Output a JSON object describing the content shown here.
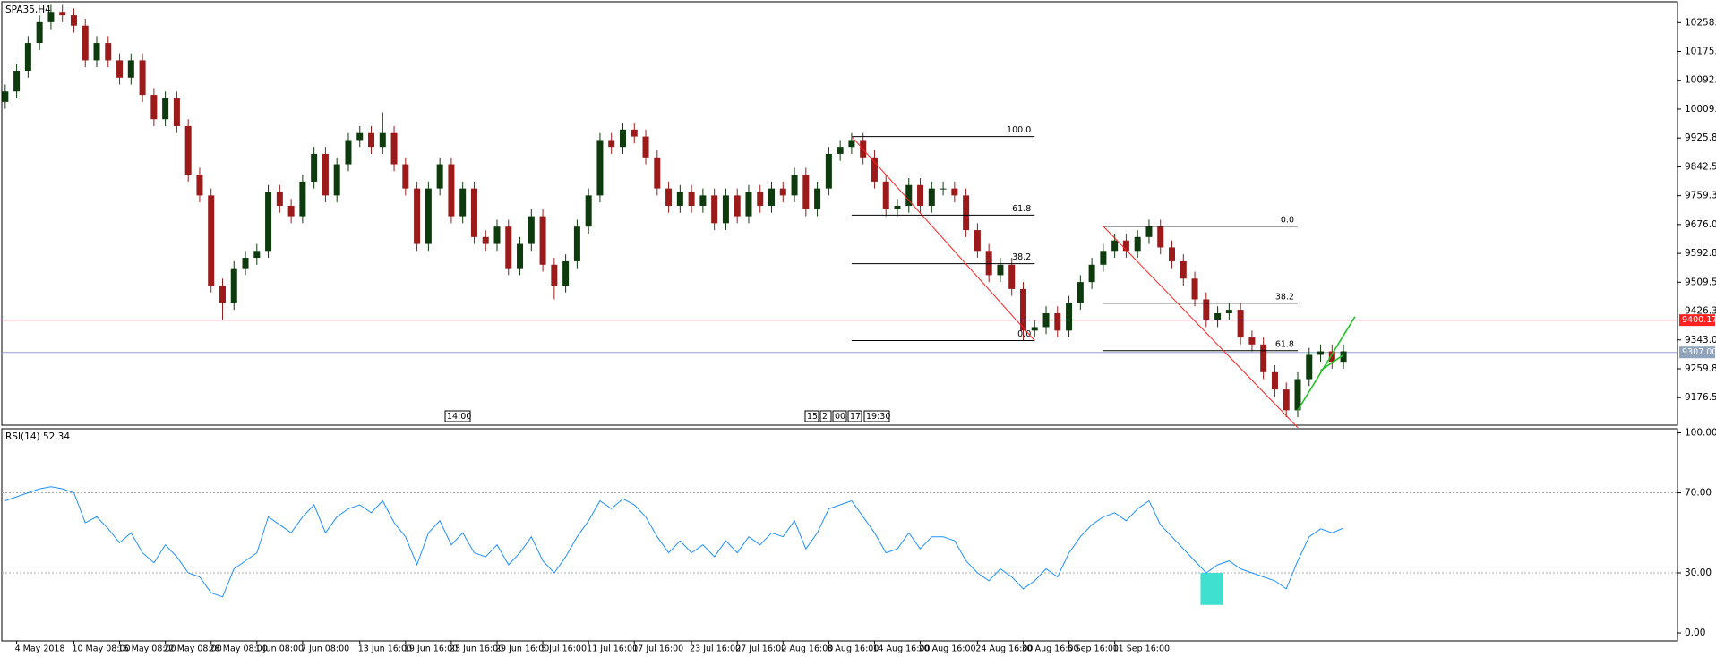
{
  "chart_data": [
    {
      "type": "candlestick",
      "title": "SPA35,H4",
      "up_color": "#0d3b0d",
      "down_color": "#9c1a1a",
      "candles": {
        "open": [
          10030,
          10060,
          10120,
          10200,
          10260,
          10290,
          10280,
          10250,
          10150,
          10200,
          10150,
          10100,
          10150,
          10050,
          9980,
          10040,
          9960,
          9820,
          9760,
          9500,
          9450,
          9550,
          9580,
          9600,
          9770,
          9730,
          9700,
          9800,
          9880,
          9760,
          9850,
          9920,
          9940,
          9900,
          9940,
          9850,
          9780,
          9620,
          9780,
          9850,
          9700,
          9780,
          9640,
          9620,
          9670,
          9550,
          9620,
          9700,
          9560,
          9500,
          9570,
          9670,
          9760,
          9920,
          9900,
          9950,
          9930,
          9870,
          9780,
          9730,
          9770,
          9730,
          9760,
          9680,
          9760,
          9700,
          9770,
          9730,
          9780,
          9760,
          9820,
          9720,
          9780,
          9880,
          9900,
          9920,
          9870,
          9800,
          9720,
          9730,
          9790,
          9730,
          9780,
          9780,
          9760,
          9660,
          9600,
          9530,
          9560,
          9490,
          9370,
          9380,
          9420,
          9370,
          9450,
          9510,
          9560,
          9600,
          9630,
          9600,
          9640,
          9670,
          9610,
          9570,
          9520,
          9460,
          9400,
          9420,
          9430,
          9350,
          9330,
          9250,
          9200,
          9140,
          9230,
          9300,
          9310,
          9280
        ],
        "high": [
          10080,
          10140,
          10220,
          10280,
          10310,
          10310,
          10300,
          10270,
          10220,
          10220,
          10170,
          10170,
          10170,
          10070,
          10060,
          10060,
          9980,
          9840,
          9780,
          9520,
          9570,
          9600,
          9620,
          9790,
          9790,
          9750,
          9820,
          9900,
          9900,
          9870,
          9940,
          9960,
          9960,
          10000,
          9960,
          9870,
          9800,
          9800,
          9870,
          9870,
          9800,
          9800,
          9660,
          9690,
          9690,
          9640,
          9720,
          9720,
          9580,
          9590,
          9690,
          9780,
          9940,
          9940,
          9970,
          9970,
          9950,
          9890,
          9800,
          9790,
          9790,
          9780,
          9780,
          9780,
          9780,
          9790,
          9790,
          9800,
          9800,
          9840,
          9840,
          9800,
          9900,
          9920,
          9940,
          9940,
          9890,
          9820,
          9750,
          9810,
          9810,
          9800,
          9800,
          9800,
          9780,
          9680,
          9620,
          9580,
          9580,
          9510,
          9400,
          9440,
          9440,
          9470,
          9530,
          9580,
          9620,
          9650,
          9650,
          9660,
          9690,
          9690,
          9630,
          9590,
          9540,
          9480,
          9440,
          9450,
          9450,
          9370,
          9350,
          9270,
          9220,
          9250,
          9320,
          9330,
          9330,
          9330
        ],
        "low": [
          10010,
          10040,
          10100,
          10180,
          10240,
          10260,
          10230,
          10130,
          10130,
          10130,
          10080,
          10080,
          10030,
          9960,
          9960,
          9940,
          9800,
          9740,
          9480,
          9400,
          9430,
          9530,
          9560,
          9580,
          9710,
          9680,
          9680,
          9780,
          9740,
          9740,
          9830,
          9900,
          9880,
          9880,
          9830,
          9760,
          9600,
          9600,
          9760,
          9680,
          9680,
          9620,
          9600,
          9600,
          9530,
          9530,
          9600,
          9540,
          9460,
          9480,
          9550,
          9650,
          9740,
          9880,
          9880,
          9910,
          9850,
          9760,
          9710,
          9710,
          9710,
          9710,
          9660,
          9660,
          9680,
          9680,
          9710,
          9710,
          9740,
          9740,
          9700,
          9700,
          9760,
          9860,
          9880,
          9850,
          9780,
          9700,
          9700,
          9710,
          9710,
          9710,
          9760,
          9740,
          9640,
          9580,
          9510,
          9510,
          9470,
          9340,
          9350,
          9360,
          9350,
          9350,
          9430,
          9490,
          9540,
          9580,
          9580,
          9580,
          9620,
          9590,
          9550,
          9500,
          9440,
          9380,
          9380,
          9400,
          9330,
          9310,
          9230,
          9180,
          9120,
          9120,
          9210,
          9280,
          9260,
          9260
        ],
        "close": [
          10060,
          10120,
          10200,
          10260,
          10290,
          10280,
          10250,
          10150,
          10200,
          10150,
          10100,
          10150,
          10050,
          9980,
          10040,
          9960,
          9820,
          9760,
          9500,
          9450,
          9550,
          9580,
          9600,
          9770,
          9730,
          9700,
          9800,
          9880,
          9760,
          9850,
          9920,
          9940,
          9900,
          9940,
          9850,
          9780,
          9620,
          9780,
          9850,
          9700,
          9780,
          9640,
          9620,
          9670,
          9550,
          9620,
          9700,
          9560,
          9500,
          9570,
          9670,
          9760,
          9920,
          9900,
          9950,
          9930,
          9870,
          9780,
          9730,
          9770,
          9730,
          9760,
          9680,
          9760,
          9700,
          9770,
          9730,
          9780,
          9760,
          9820,
          9720,
          9780,
          9880,
          9900,
          9920,
          9870,
          9800,
          9720,
          9730,
          9790,
          9730,
          9780,
          9780,
          9760,
          9660,
          9600,
          9530,
          9560,
          9490,
          9370,
          9380,
          9420,
          9370,
          9450,
          9510,
          9560,
          9600,
          9630,
          9600,
          9640,
          9670,
          9610,
          9570,
          9520,
          9460,
          9400,
          9420,
          9430,
          9350,
          9330,
          9250,
          9200,
          9140,
          9230,
          9300,
          9310,
          9280,
          9310
        ]
      },
      "xlim": [
        -0.3,
        146.2
      ],
      "xticks": [
        {
          "value": 1,
          "label": "4 May 2018"
        },
        {
          "value": 6,
          "label": "10 May 08:00"
        },
        {
          "value": 10,
          "label": "16 May 08:00"
        },
        {
          "value": 14,
          "label": "22 May 08:00"
        },
        {
          "value": 18,
          "label": "28 May 08:00"
        },
        {
          "value": 22,
          "label": "1 Jun 08:00"
        },
        {
          "value": 26,
          "label": "7 Jun 08:00"
        },
        {
          "value": 31,
          "label": "13 Jun 16:00"
        },
        {
          "value": 35,
          "label": "19 Jun 16:00"
        },
        {
          "value": 39,
          "label": "25 Jun 16:00"
        },
        {
          "value": 43,
          "label": "29 Jun 16:00"
        },
        {
          "value": 47,
          "label": "5 Jul 16:00"
        },
        {
          "value": 51,
          "label": "11 Jul 16:00"
        },
        {
          "value": 55,
          "label": "17 Jul 16:00"
        },
        {
          "value": 60,
          "label": "23 Jul 16:00"
        },
        {
          "value": 64,
          "label": "27 Jul 16:00"
        },
        {
          "value": 68,
          "label": "2 Aug 16:00"
        },
        {
          "value": 72,
          "label": "8 Aug 16:00"
        },
        {
          "value": 76,
          "label": "14 Aug 16:00"
        },
        {
          "value": 80,
          "label": "20 Aug 16:00"
        },
        {
          "value": 85,
          "label": "24 Aug 16:00"
        },
        {
          "value": 89,
          "label": "30 Aug 16:00"
        },
        {
          "value": 93,
          "label": "5 Sep 16:00"
        },
        {
          "value": 97,
          "label": "11 Sep 16:00"
        }
      ],
      "ylim": [
        9097,
        10319
      ],
      "yticks": [
        {
          "value": 10258.8,
          "label": "10258.80"
        },
        {
          "value": 10175.55,
          "label": "10175.55"
        },
        {
          "value": 10092.3,
          "label": "10092.30"
        },
        {
          "value": 10009.05,
          "label": "10009.05"
        },
        {
          "value": 9925.8,
          "label": "9925.80"
        },
        {
          "value": 9842.55,
          "label": "9842.55"
        },
        {
          "value": 9759.3,
          "label": "9759.30"
        },
        {
          "value": 9676.05,
          "label": "9676.05"
        },
        {
          "value": 9592.8,
          "label": "9592.80"
        },
        {
          "value": 9509.55,
          "label": "9509.55"
        },
        {
          "value": 9426.3,
          "label": "9426.30"
        },
        {
          "value": 9343.05,
          "label": "9343.05"
        },
        {
          "value": 9259.8,
          "label": "9259.80"
        },
        {
          "value": 9176.55,
          "label": "9176.55"
        }
      ],
      "price_lines": [
        {
          "value": 9400.17,
          "label": "9400.17",
          "color": "#ff2020"
        },
        {
          "value": 9307,
          "label": "9307.00",
          "color": "#8fa3bd"
        }
      ],
      "fibonacci": [
        {
          "x": [
            74,
            90
          ],
          "levels": [
            {
              "price": 9930,
              "label": "100.0"
            },
            {
              "price": 9703,
              "label": "61.8"
            },
            {
              "price": 9563,
              "label": "38.2"
            },
            {
              "price": 9341,
              "label": "0.0"
            }
          ]
        },
        {
          "x": [
            96,
            113
          ],
          "levels": [
            {
              "price": 9671,
              "label": "0.0"
            },
            {
              "price": 9449,
              "label": "38.2"
            },
            {
              "price": 9312,
              "label": "61.8"
            }
          ]
        }
      ],
      "trendlines": [
        {
          "x": [
            74,
            90
          ],
          "y": [
            9930,
            9341
          ],
          "color": "#ff2020"
        },
        {
          "x": [
            96,
            113
          ],
          "y": [
            9671,
            9090
          ],
          "color": "#ff2020"
        },
        {
          "x": [
            113,
            118
          ],
          "y": [
            9140,
            9410
          ],
          "color": "#22c322"
        },
        {
          "x": [
            115,
            117
          ],
          "y": [
            9255,
            9300
          ],
          "color": "#22c322"
        }
      ],
      "time_markers": [
        "14:00",
        "15:",
        "2",
        "00",
        "17",
        "19:30"
      ]
    },
    {
      "type": "line",
      "title": "RSI(14) 52.34",
      "color": "#1e90ff",
      "values": [
        66,
        68,
        70,
        72,
        73,
        72,
        70,
        55,
        58,
        52,
        45,
        50,
        40,
        35,
        44,
        38,
        30,
        28,
        20,
        18,
        32,
        36,
        40,
        58,
        54,
        50,
        58,
        64,
        50,
        58,
        62,
        64,
        60,
        66,
        55,
        48,
        34,
        50,
        56,
        44,
        50,
        40,
        38,
        44,
        34,
        40,
        48,
        36,
        30,
        38,
        48,
        56,
        66,
        62,
        67,
        64,
        58,
        48,
        40,
        46,
        40,
        44,
        38,
        46,
        40,
        48,
        44,
        50,
        48,
        56,
        42,
        50,
        62,
        64,
        66,
        58,
        50,
        40,
        42,
        50,
        42,
        48,
        48,
        46,
        36,
        30,
        26,
        32,
        28,
        22,
        26,
        32,
        28,
        40,
        48,
        54,
        58,
        60,
        56,
        62,
        66,
        54,
        48,
        42,
        36,
        30,
        34,
        36,
        32,
        30,
        28,
        26,
        22,
        36,
        48,
        52,
        50,
        52.34
      ],
      "ylim": [
        -4,
        102
      ],
      "yticks": [
        {
          "value": 100,
          "label": "100.00"
        },
        {
          "value": 70,
          "label": "70.00"
        },
        {
          "value": 30,
          "label": "30.00"
        },
        {
          "value": 0,
          "label": "0.00"
        }
      ],
      "levels": [
        70,
        30
      ],
      "highlight": {
        "x": [
          104.5,
          106.5
        ],
        "y": [
          14,
          30
        ],
        "color": "#40e0d0"
      }
    }
  ]
}
